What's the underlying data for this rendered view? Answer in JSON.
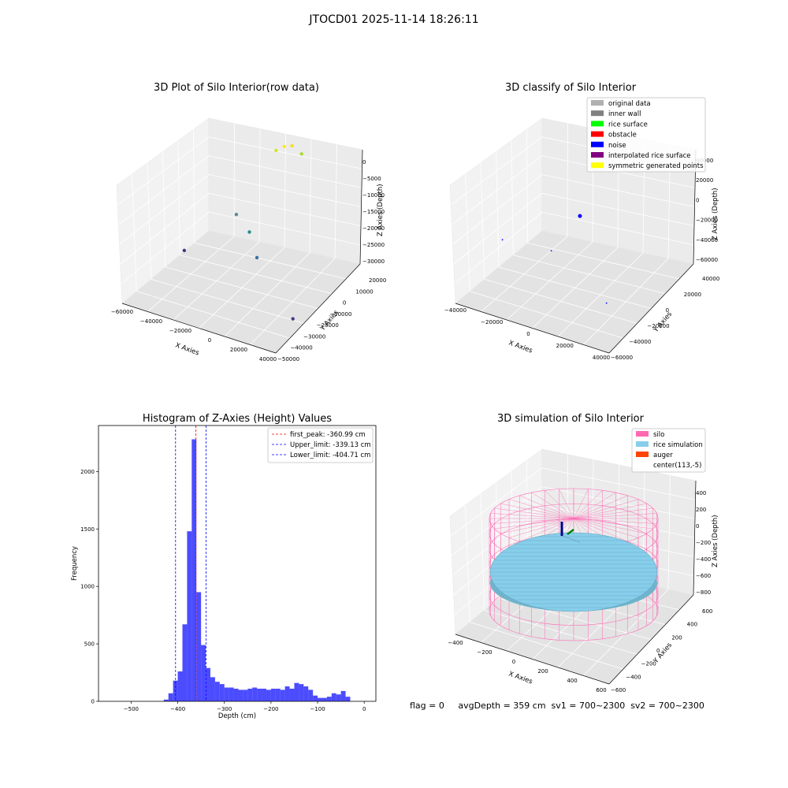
{
  "figure_title": "JTOCD01 2025-11-14 18:26:11",
  "footer_text": "flag = 0     avgDepth = 359 cm  sv1 = 700~2300  sv2 = 700~2300",
  "chart_data": [
    {
      "type": "scatter",
      "projection": "3d",
      "title": "3D Plot of Silo Interior(row data)",
      "xlabel": "X Axies",
      "ylabel": "Y Axies",
      "zlabel": "Z Axies (Depth)",
      "x_ticks": [
        "−60000",
        "−40000",
        "−20000",
        "0",
        "20000",
        "40000"
      ],
      "y_ticks": [
        "−50000",
        "−40000",
        "−30000",
        "−20000",
        "−10000",
        "0",
        "10000",
        "20000"
      ],
      "z_ticks": [
        "−30000",
        "−25000",
        "−20000",
        "−15000",
        "−10000",
        "−5000",
        "0"
      ],
      "points": [
        {
          "x": -50000,
          "y": -10000,
          "z": -31000,
          "color": "#46327e"
        },
        {
          "x": -30000,
          "y": 10000,
          "z": -25000,
          "color": "#5b8a8f"
        },
        {
          "x": -12000,
          "y": 0,
          "z": -24000,
          "color": "#2a8c8a"
        },
        {
          "x": 2000,
          "y": -10000,
          "z": -26000,
          "color": "#3b6ea0"
        },
        {
          "x": 45000,
          "y": -30000,
          "z": -31000,
          "color": "#3f3c8c"
        },
        {
          "x": 0,
          "y": 15000,
          "z": -2000,
          "color": "#fde725"
        },
        {
          "x": -5000,
          "y": 14000,
          "z": -3500,
          "color": "#d3e32a"
        },
        {
          "x": 3000,
          "y": 18000,
          "z": -2500,
          "color": "#f0e21f"
        },
        {
          "x": 15000,
          "y": 12000,
          "z": -1000,
          "color": "#a8db34"
        }
      ]
    },
    {
      "type": "scatter",
      "projection": "3d",
      "title": "3D classify of Silo Interior",
      "xlabel": "X Axies",
      "ylabel": "Y Axies",
      "zlabel": "Z Axies (Depth)",
      "x_ticks": [
        "−40000",
        "−20000",
        "0",
        "20000",
        "40000"
      ],
      "y_ticks": [
        "−60000",
        "−40000",
        "−20000",
        "0",
        "20000",
        "40000"
      ],
      "z_ticks": [
        "−60000",
        "−40000",
        "−20000",
        "0",
        "20000",
        "40000"
      ],
      "legend": [
        {
          "label": "original data",
          "color": "#b0b0b0"
        },
        {
          "label": "inner wall",
          "color": "#808080"
        },
        {
          "label": "rice surface",
          "color": "#00ff00"
        },
        {
          "label": "obstacle",
          "color": "#ff0000"
        },
        {
          "label": "noise",
          "color": "#0000ff"
        },
        {
          "label": "interpolated rice surface",
          "color": "#800080"
        },
        {
          "label": "symmetric generated points",
          "color": "#ffff00"
        }
      ],
      "points": [
        {
          "x": 0,
          "y": 0,
          "z": 0,
          "color": "#0000ff"
        },
        {
          "x": -45000,
          "y": -20000,
          "z": -30000,
          "color": "#0000ff"
        },
        {
          "x": -10000,
          "y": -20000,
          "z": -25000,
          "color": "#0000ff"
        },
        {
          "x": 40000,
          "y": -40000,
          "z": -40000,
          "color": "#0000ff"
        }
      ]
    },
    {
      "type": "bar",
      "subtype": "histogram",
      "title": "Histogram of Z-Axies (Height) Values",
      "xlabel": "Depth (cm)",
      "ylabel": "Frequency",
      "xlim": [
        -570,
        25
      ],
      "ylim": [
        0,
        2400
      ],
      "x_ticks": [
        -500,
        -400,
        -300,
        -200,
        -100,
        0
      ],
      "y_ticks": [
        0,
        500,
        1000,
        1500,
        2000
      ],
      "bar_color": "#0000ff",
      "bin_width": 10,
      "bins_start": [
        -430,
        -420,
        -410,
        -400,
        -390,
        -380,
        -370,
        -360,
        -350,
        -340,
        -330,
        -320,
        -310,
        -300,
        -290,
        -280,
        -270,
        -260,
        -250,
        -240,
        -230,
        -220,
        -210,
        -200,
        -190,
        -180,
        -170,
        -160,
        -150,
        -140,
        -130,
        -120,
        -110,
        -100,
        -90,
        -80,
        -70,
        -60,
        -50,
        -40,
        -30,
        -20
      ],
      "counts": [
        15,
        70,
        180,
        260,
        670,
        1480,
        2280,
        950,
        490,
        290,
        210,
        170,
        150,
        120,
        120,
        110,
        100,
        100,
        110,
        120,
        110,
        110,
        100,
        110,
        110,
        100,
        130,
        110,
        160,
        150,
        130,
        100,
        50,
        30,
        30,
        40,
        70,
        60,
        90,
        40,
        0,
        0
      ],
      "lines": [
        {
          "label": "first_peak: -360.99 cm",
          "x": -360.99,
          "color": "#ff0000"
        },
        {
          "label": "Upper_limit: -339.13 cm",
          "x": -339.13,
          "color": "#0000ff"
        },
        {
          "label": "Lower_limit: -404.71 cm",
          "x": -404.71,
          "color": "#0000ff"
        }
      ]
    },
    {
      "type": "surface",
      "projection": "3d",
      "title": "3D simulation of Silo Interior",
      "xlabel": "X Axies",
      "ylabel": "Y Axies",
      "zlabel": "Z Axies (Depth)",
      "x_ticks": [
        "−400",
        "−200",
        "0",
        "200",
        "400",
        "600"
      ],
      "y_ticks": [
        "−600",
        "−400",
        "−200",
        "0",
        "200",
        "400",
        "600"
      ],
      "z_ticks": [
        "−800",
        "−600",
        "−400",
        "−200",
        "0",
        "200",
        "400"
      ],
      "legend": [
        {
          "label": "silo",
          "color": "#ff69b4"
        },
        {
          "label": "rice simulation",
          "color": "#87ceeb"
        },
        {
          "label": "auger",
          "color": "#ff4500"
        },
        {
          "label": "center(113,-5)",
          "color": ""
        }
      ],
      "silo_color": "#ff69b4",
      "rice_color": "#87ceeb"
    }
  ]
}
